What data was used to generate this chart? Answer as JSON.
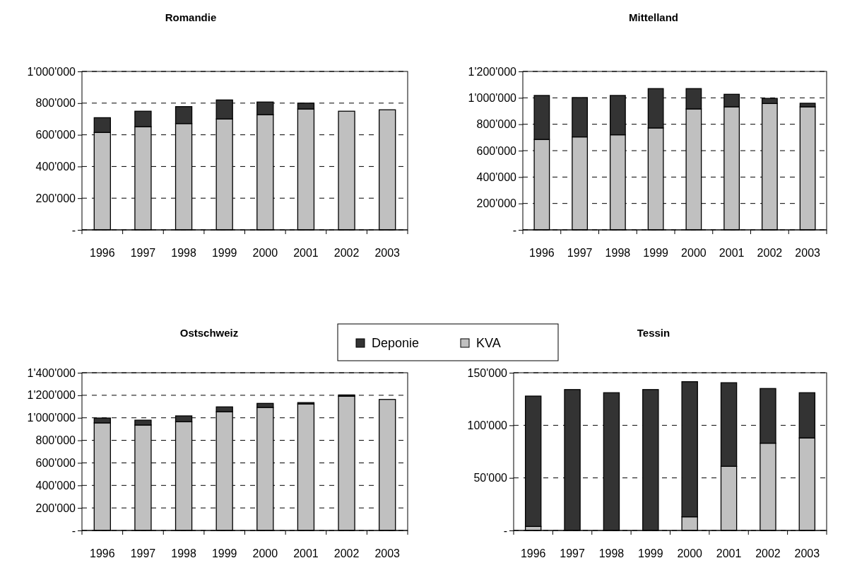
{
  "chart_data": [
    {
      "type": "bar",
      "title": "Romandie",
      "stacked": true,
      "categories": [
        "1996",
        "1997",
        "1998",
        "1999",
        "2000",
        "2001",
        "2002",
        "2003"
      ],
      "ylim": [
        0,
        1000000
      ],
      "yticks": [
        {
          "value": 0,
          "label": "-"
        },
        {
          "value": 200000,
          "label": "200'000"
        },
        {
          "value": 400000,
          "label": "400'000"
        },
        {
          "value": 600000,
          "label": "600'000"
        },
        {
          "value": 800000,
          "label": "800'000"
        },
        {
          "value": 1000000,
          "label": "1'000'000"
        }
      ],
      "grid": "y",
      "series": [
        {
          "color": "#c0c0c0",
          "values": [
            615000,
            651000,
            671000,
            700000,
            727000,
            763000,
            749000,
            758000
          ]
        },
        {
          "color": "#333333",
          "values": [
            93000,
            98000,
            107000,
            120000,
            80000,
            37000,
            0,
            0
          ]
        }
      ]
    },
    {
      "type": "bar",
      "title": "Mittelland",
      "stacked": true,
      "categories": [
        "1996",
        "1997",
        "1998",
        "1999",
        "2000",
        "2001",
        "2002",
        "2003"
      ],
      "ylim": [
        0,
        1200000
      ],
      "yticks": [
        {
          "value": 0,
          "label": "-"
        },
        {
          "value": 200000,
          "label": "200'000"
        },
        {
          "value": 400000,
          "label": "400'000"
        },
        {
          "value": 600000,
          "label": "600'000"
        },
        {
          "value": 800000,
          "label": "800'000"
        },
        {
          "value": 1000000,
          "label": "1'000'000"
        },
        {
          "value": 1200000,
          "label": "1'200'000"
        }
      ],
      "grid": "y",
      "series": [
        {
          "color": "#c0c0c0",
          "values": [
            685000,
            704000,
            720000,
            772000,
            916000,
            932000,
            957000,
            932000
          ]
        },
        {
          "color": "#333333",
          "values": [
            333000,
            298000,
            298000,
            298000,
            154000,
            95000,
            39000,
            27000
          ]
        }
      ]
    },
    {
      "type": "bar",
      "title": "Ostschweiz",
      "stacked": true,
      "legend": "top",
      "categories": [
        "1996",
        "1997",
        "1998",
        "1999",
        "2000",
        "2001",
        "2002",
        "2003"
      ],
      "ylim": [
        0,
        1400000
      ],
      "yticks": [
        {
          "value": 0,
          "label": "-"
        },
        {
          "value": 200000,
          "label": "200'000"
        },
        {
          "value": 400000,
          "label": "400'000"
        },
        {
          "value": 600000,
          "label": "600'000"
        },
        {
          "value": 800000,
          "label": "800'000"
        },
        {
          "value": 1000000,
          "label": "1'000'000"
        },
        {
          "value": 1200000,
          "label": "1'200'000"
        },
        {
          "value": 1400000,
          "label": "1'400'000"
        }
      ],
      "grid": "y",
      "series": [
        {
          "name": "KVA",
          "color": "#c0c0c0",
          "values": [
            955000,
            936000,
            965000,
            1054000,
            1092000,
            1123000,
            1192000,
            1163000
          ]
        },
        {
          "name": "Deponie",
          "color": "#333333",
          "values": [
            43000,
            43000,
            52000,
            43000,
            36000,
            12000,
            11000,
            0
          ]
        }
      ]
    },
    {
      "type": "bar",
      "title": "Tessin",
      "stacked": true,
      "categories": [
        "1996",
        "1997",
        "1998",
        "1999",
        "2000",
        "2001",
        "2002",
        "2003"
      ],
      "ylim": [
        0,
        150000
      ],
      "yticks": [
        {
          "value": 0,
          "label": "-"
        },
        {
          "value": 50000,
          "label": "50'000"
        },
        {
          "value": 100000,
          "label": "100'000"
        },
        {
          "value": 150000,
          "label": "150'000"
        }
      ],
      "grid": "y",
      "series": [
        {
          "color": "#c0c0c0",
          "values": [
            3800,
            0,
            0,
            0,
            13000,
            61000,
            83000,
            88000
          ]
        },
        {
          "color": "#333333",
          "values": [
            124000,
            134000,
            131000,
            134000,
            128500,
            79500,
            52000,
            43000
          ]
        }
      ]
    }
  ]
}
